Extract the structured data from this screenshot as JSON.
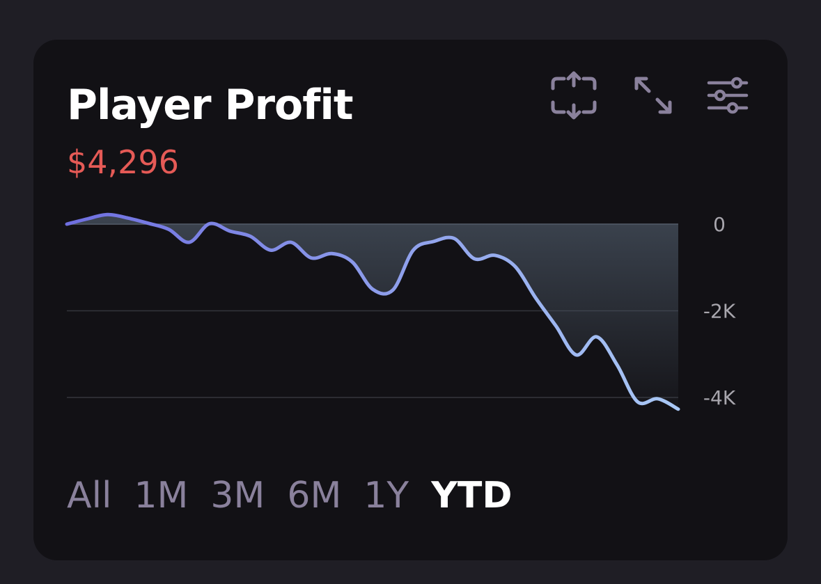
{
  "widget": {
    "title": "Player Profit",
    "value": "$4,296",
    "value_color": "#e55a56"
  },
  "toolbar": {
    "icons": [
      "focus-refresh-icon",
      "expand-icon",
      "sliders-icon"
    ]
  },
  "chart_data": {
    "type": "area",
    "title": "",
    "xlabel": "",
    "ylabel": "",
    "ylim": [
      -4300,
      200
    ],
    "y_ticks": [
      0,
      -2000,
      -4000
    ],
    "y_tick_labels": [
      "0",
      "-2K",
      "-4K"
    ],
    "grid": true,
    "series": [
      {
        "color_start": "#6f6fe0",
        "color_end": "#a9c8f5",
        "values": [
          0,
          120,
          220,
          140,
          20,
          -120,
          -420,
          10,
          -160,
          -280,
          -600,
          -420,
          -780,
          -680,
          -870,
          -1500,
          -1520,
          -600,
          -400,
          -330,
          -800,
          -720,
          -980,
          -1700,
          -2350,
          -3020,
          -2600,
          -3250,
          -4100,
          -4030,
          -4270
        ]
      }
    ]
  },
  "time_ranges": {
    "items": [
      "All",
      "1M",
      "3M",
      "6M",
      "1Y",
      "YTD"
    ],
    "selected": "YTD"
  }
}
